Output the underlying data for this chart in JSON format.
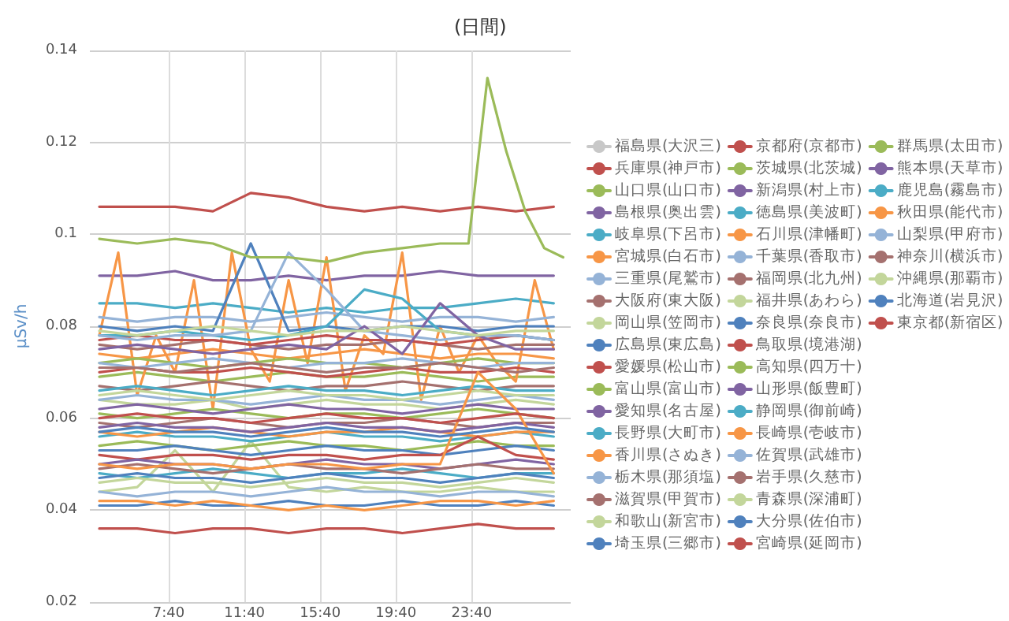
{
  "chart_data": {
    "type": "line",
    "title": "(日間)",
    "ylabel": "μSv/h",
    "xlim": [
      3.5,
      28.9
    ],
    "xticks": [
      {
        "value": 7.667,
        "label": "7:40"
      },
      {
        "value": 11.667,
        "label": "11:40"
      },
      {
        "value": 15.667,
        "label": "15:40"
      },
      {
        "value": 19.667,
        "label": "19:40"
      },
      {
        "value": 23.667,
        "label": "23:40"
      }
    ],
    "ylim": [
      0.02,
      0.14
    ],
    "yticks": [
      0.02,
      0.04,
      0.06,
      0.08,
      0.1,
      0.12,
      0.14
    ],
    "grid": true,
    "legend": "right",
    "marker": "none",
    "line_style": "solid",
    "x": [
      4,
      6,
      8,
      10,
      12,
      14,
      16,
      18,
      20,
      22,
      24,
      26,
      28
    ],
    "series": [
      {
        "name": "福島県(大沢三)",
        "color": "#c8c8c8",
        "values": [
          null,
          null,
          null,
          null,
          null,
          null,
          null,
          null,
          null,
          null,
          null,
          null,
          null
        ]
      },
      {
        "name": "兵庫県(神戸市)",
        "color": "#c0504d",
        "values": [
          0.106,
          0.106,
          0.106,
          0.105,
          0.109,
          0.108,
          0.106,
          0.105,
          0.106,
          0.105,
          0.106,
          0.105,
          0.106
        ]
      },
      {
        "name": "山口県(山口市)",
        "color": "#9bbb59",
        "values": [
          0.069,
          0.07,
          0.069,
          0.068,
          0.069,
          0.07,
          0.069,
          0.069,
          0.07,
          0.069,
          0.068,
          0.069,
          0.069
        ]
      },
      {
        "name": "島根県(奥出雲)",
        "color": "#8064a2",
        "values": [
          0.091,
          0.091,
          0.092,
          0.09,
          0.09,
          0.091,
          0.09,
          0.091,
          0.091,
          0.092,
          0.091,
          0.091,
          0.091
        ]
      },
      {
        "name": "岐阜県(下呂市)",
        "color": "#4bacc6",
        "values": [
          0.085,
          0.085,
          0.084,
          0.085,
          0.084,
          0.083,
          0.084,
          0.083,
          0.084,
          0.084,
          0.085,
          0.086,
          0.085
        ]
      },
      {
        "name": "宮城県(白石市)",
        "color": "#f79646",
        "x": [
          4,
          5,
          6,
          7,
          8,
          9,
          10,
          11,
          12,
          13,
          14,
          15,
          16,
          17,
          18,
          19,
          20,
          21,
          22,
          23,
          24,
          25,
          26,
          27,
          28
        ],
        "values": [
          0.078,
          0.096,
          0.065,
          0.078,
          0.07,
          0.09,
          0.062,
          0.096,
          0.075,
          0.068,
          0.09,
          0.072,
          0.095,
          0.066,
          0.078,
          0.074,
          0.096,
          0.064,
          0.08,
          0.07,
          0.078,
          0.072,
          0.068,
          0.09,
          0.075
        ]
      },
      {
        "name": "三重県(尾鷲市)",
        "color": "#95b3d7",
        "values": [
          0.082,
          0.081,
          0.082,
          0.082,
          0.081,
          0.082,
          0.083,
          0.082,
          0.081,
          0.082,
          0.082,
          0.081,
          0.082
        ]
      },
      {
        "name": "大阪府(東大阪)",
        "color": "#a5716f",
        "values": [
          0.076,
          0.075,
          0.076,
          0.077,
          0.076,
          0.075,
          0.076,
          0.076,
          0.077,
          0.076,
          0.075,
          0.076,
          0.076
        ]
      },
      {
        "name": "岡山県(笠岡市)",
        "color": "#c3d69b",
        "values": [
          0.064,
          0.063,
          0.063,
          0.064,
          0.062,
          0.063,
          0.064,
          0.063,
          0.063,
          0.062,
          0.063,
          0.064,
          0.063
        ]
      },
      {
        "name": "広島県(東広島)",
        "color": "#4f81bd",
        "values": [
          0.08,
          0.079,
          0.08,
          0.079,
          0.098,
          0.079,
          0.08,
          0.079,
          0.08,
          0.08,
          0.079,
          0.08,
          0.08
        ]
      },
      {
        "name": "愛媛県(松山市)",
        "color": "#c0504d",
        "values": [
          0.077,
          0.078,
          0.077,
          0.077,
          0.076,
          0.077,
          0.078,
          0.077,
          0.077,
          0.076,
          0.077,
          0.078,
          0.077
        ]
      },
      {
        "name": "富山県(富山市)",
        "color": "#9bbb59",
        "values": [
          0.061,
          0.06,
          0.061,
          0.062,
          0.061,
          0.06,
          0.061,
          0.061,
          0.06,
          0.061,
          0.062,
          0.061,
          0.06
        ]
      },
      {
        "name": "愛知県(名古屋)",
        "color": "#8064a2",
        "values": [
          0.062,
          0.063,
          0.062,
          0.061,
          0.062,
          0.063,
          0.062,
          0.062,
          0.061,
          0.062,
          0.063,
          0.062,
          0.062
        ]
      },
      {
        "name": "長野県(大町市)",
        "color": "#4bacc6",
        "values": [
          0.078,
          0.078,
          0.079,
          0.078,
          0.077,
          0.078,
          0.08,
          0.088,
          0.086,
          0.079,
          0.078,
          0.078,
          0.077
        ]
      },
      {
        "name": "香川県(さぬき)",
        "color": "#f79646",
        "values": [
          0.074,
          0.073,
          0.074,
          0.075,
          0.074,
          0.073,
          0.074,
          0.075,
          0.074,
          0.073,
          0.074,
          0.074,
          0.073
        ]
      },
      {
        "name": "栃木県(那須塩)",
        "color": "#95b3d7",
        "values": [
          0.078,
          0.077,
          0.078,
          0.078,
          0.079,
          0.096,
          0.088,
          0.079,
          0.078,
          0.077,
          0.078,
          0.078,
          0.077
        ]
      },
      {
        "name": "滋賀県(甲賀市)",
        "color": "#a5716f",
        "values": [
          0.067,
          0.066,
          0.067,
          0.068,
          0.067,
          0.066,
          0.067,
          0.067,
          0.068,
          0.067,
          0.066,
          0.067,
          0.067
        ]
      },
      {
        "name": "和歌山(新宮市)",
        "color": "#c3d69b",
        "values": [
          0.044,
          0.045,
          0.053,
          0.044,
          0.055,
          0.045,
          0.044,
          0.045,
          0.044,
          0.044,
          0.045,
          0.044,
          0.044
        ]
      },
      {
        "name": "埼玉県(三郷市)",
        "color": "#4f81bd",
        "values": [
          0.041,
          0.041,
          0.042,
          0.041,
          0.041,
          0.042,
          0.041,
          0.041,
          0.042,
          0.041,
          0.041,
          0.042,
          0.041
        ]
      },
      {
        "name": "京都府(京都市)",
        "color": "#c0504d",
        "values": [
          0.07,
          0.071,
          0.07,
          0.07,
          0.071,
          0.07,
          0.069,
          0.07,
          0.071,
          0.07,
          0.07,
          0.071,
          0.07
        ]
      },
      {
        "name": "茨城県(北茨城)",
        "color": "#9bbb59",
        "values": [
          0.054,
          0.055,
          0.054,
          0.053,
          0.054,
          0.055,
          0.054,
          0.054,
          0.053,
          0.054,
          0.055,
          0.054,
          0.054
        ]
      },
      {
        "name": "新潟県(村上市)",
        "color": "#8064a2",
        "values": [
          0.075,
          0.076,
          0.075,
          0.074,
          0.075,
          0.076,
          0.075,
          0.08,
          0.074,
          0.085,
          0.078,
          0.075,
          0.075
        ]
      },
      {
        "name": "徳島県(美波町)",
        "color": "#4bacc6",
        "values": [
          0.056,
          0.057,
          0.056,
          0.056,
          0.055,
          0.056,
          0.057,
          0.056,
          0.056,
          0.055,
          0.056,
          0.057,
          0.056
        ]
      },
      {
        "name": "石川県(津幡町)",
        "color": "#f79646",
        "values": [
          0.057,
          0.056,
          0.057,
          0.058,
          0.057,
          0.056,
          0.057,
          0.057,
          0.058,
          0.057,
          0.056,
          0.057,
          0.057
        ]
      },
      {
        "name": "千葉県(香取市)",
        "color": "#95b3d7",
        "values": [
          0.064,
          0.065,
          0.064,
          0.064,
          0.063,
          0.064,
          0.065,
          0.064,
          0.064,
          0.063,
          0.064,
          0.065,
          0.064
        ]
      },
      {
        "name": "福岡県(北九州)",
        "color": "#a5716f",
        "values": [
          0.059,
          0.058,
          0.059,
          0.06,
          0.059,
          0.058,
          0.059,
          0.059,
          0.06,
          0.059,
          0.058,
          0.059,
          0.059
        ]
      },
      {
        "name": "福井県(あわら)",
        "color": "#c3d69b",
        "values": [
          0.065,
          0.066,
          0.065,
          0.064,
          0.065,
          0.066,
          0.065,
          0.065,
          0.064,
          0.065,
          0.066,
          0.065,
          0.065
        ]
      },
      {
        "name": "奈良県(奈良市)",
        "color": "#4f81bd",
        "values": [
          0.053,
          0.053,
          0.054,
          0.053,
          0.052,
          0.053,
          0.054,
          0.053,
          0.053,
          0.052,
          0.053,
          0.054,
          0.053
        ]
      },
      {
        "name": "鳥取県(境港湖)",
        "color": "#c0504d",
        "values": [
          0.052,
          0.051,
          0.052,
          0.052,
          0.051,
          0.052,
          0.052,
          0.051,
          0.052,
          0.052,
          0.056,
          0.052,
          0.051
        ]
      },
      {
        "name": "高知県(四万十)",
        "color": "#9bbb59",
        "values": [
          0.072,
          0.073,
          0.072,
          0.071,
          0.072,
          0.073,
          0.072,
          0.072,
          0.071,
          0.072,
          0.073,
          0.072,
          0.072
        ]
      },
      {
        "name": "山形県(飯豊町)",
        "color": "#8064a2",
        "values": [
          0.05,
          0.051,
          0.05,
          0.05,
          0.049,
          0.05,
          0.051,
          0.05,
          0.05,
          0.049,
          0.05,
          0.051,
          0.05
        ]
      },
      {
        "name": "静岡県(御前崎)",
        "color": "#4bacc6",
        "values": [
          0.048,
          0.047,
          0.048,
          0.049,
          0.048,
          0.047,
          0.048,
          0.048,
          0.049,
          0.048,
          0.047,
          0.048,
          0.048
        ]
      },
      {
        "name": "長崎県(壱岐市)",
        "color": "#f79646",
        "values": [
          0.042,
          0.042,
          0.041,
          0.042,
          0.041,
          0.04,
          0.041,
          0.04,
          0.041,
          0.042,
          0.042,
          0.041,
          0.042
        ]
      },
      {
        "name": "佐賀県(武雄市)",
        "color": "#95b3d7",
        "values": [
          0.044,
          0.043,
          0.044,
          0.044,
          0.043,
          0.044,
          0.045,
          0.044,
          0.044,
          0.043,
          0.044,
          0.044,
          0.043
        ]
      },
      {
        "name": "岩手県(久慈市)",
        "color": "#a5716f",
        "values": [
          0.049,
          0.05,
          0.049,
          0.048,
          0.049,
          0.05,
          0.049,
          0.049,
          0.048,
          0.049,
          0.05,
          0.049,
          0.049
        ]
      },
      {
        "name": "青森県(深浦町)",
        "color": "#c3d69b",
        "values": [
          0.079,
          0.078,
          0.079,
          0.08,
          0.079,
          0.078,
          0.079,
          0.079,
          0.08,
          0.079,
          0.078,
          0.079,
          0.079
        ]
      },
      {
        "name": "大分県(佐伯市)",
        "color": "#4f81bd",
        "values": [
          0.047,
          0.048,
          0.047,
          0.047,
          0.046,
          0.047,
          0.048,
          0.047,
          0.047,
          0.046,
          0.047,
          0.048,
          0.047
        ]
      },
      {
        "name": "宮崎県(延岡市)",
        "color": "#c0504d",
        "values": [
          0.036,
          0.036,
          0.035,
          0.036,
          0.036,
          0.035,
          0.036,
          0.036,
          0.035,
          0.036,
          0.037,
          0.036,
          0.036
        ]
      },
      {
        "name": "群馬県(太田市)",
        "color": "#9bbb59",
        "x": [
          4,
          6,
          8,
          10,
          12,
          14,
          16,
          18,
          20,
          22,
          23.5,
          24.5,
          25.5,
          26.5,
          27.5,
          28.5
        ],
        "values": [
          0.099,
          0.098,
          0.099,
          0.098,
          0.095,
          0.095,
          0.094,
          0.096,
          0.097,
          0.098,
          0.098,
          0.134,
          0.118,
          0.105,
          0.097,
          0.095
        ]
      },
      {
        "name": "熊本県(天草市)",
        "color": "#8064a2",
        "values": [
          0.058,
          0.059,
          0.058,
          0.058,
          0.057,
          0.058,
          0.059,
          0.058,
          0.058,
          0.057,
          0.058,
          0.059,
          0.058
        ]
      },
      {
        "name": "鹿児島(霧島市)",
        "color": "#4bacc6",
        "values": [
          0.066,
          0.067,
          0.066,
          0.065,
          0.066,
          0.067,
          0.066,
          0.066,
          0.065,
          0.066,
          0.067,
          0.066,
          0.066
        ]
      },
      {
        "name": "秋田県(能代市)",
        "color": "#f79646",
        "values": [
          0.05,
          0.049,
          0.05,
          0.05,
          0.049,
          0.05,
          0.05,
          0.049,
          0.05,
          0.05,
          0.07,
          0.062,
          0.048
        ]
      },
      {
        "name": "山梨県(甲府市)",
        "color": "#95b3d7",
        "values": [
          0.072,
          0.071,
          0.072,
          0.073,
          0.072,
          0.071,
          0.072,
          0.072,
          0.073,
          0.072,
          0.071,
          0.072,
          0.072
        ]
      },
      {
        "name": "神奈川(横浜市)",
        "color": "#a5716f",
        "values": [
          0.071,
          0.071,
          0.07,
          0.071,
          0.072,
          0.071,
          0.07,
          0.071,
          0.071,
          0.072,
          0.071,
          0.07,
          0.071
        ]
      },
      {
        "name": "沖縄県(那覇市)",
        "color": "#c3d69b",
        "values": [
          0.046,
          0.047,
          0.046,
          0.046,
          0.045,
          0.046,
          0.047,
          0.046,
          0.046,
          0.045,
          0.046,
          0.047,
          0.046
        ]
      },
      {
        "name": "北海道(岩見沢)",
        "color": "#4f81bd",
        "values": [
          0.057,
          0.058,
          0.057,
          0.057,
          0.056,
          0.057,
          0.058,
          0.057,
          0.057,
          0.056,
          0.057,
          0.058,
          0.057
        ]
      },
      {
        "name": "東京都(新宿区)",
        "color": "#c0504d",
        "values": [
          0.06,
          0.061,
          0.06,
          0.06,
          0.059,
          0.06,
          0.061,
          0.06,
          0.06,
          0.059,
          0.06,
          0.061,
          0.06
        ]
      }
    ]
  }
}
